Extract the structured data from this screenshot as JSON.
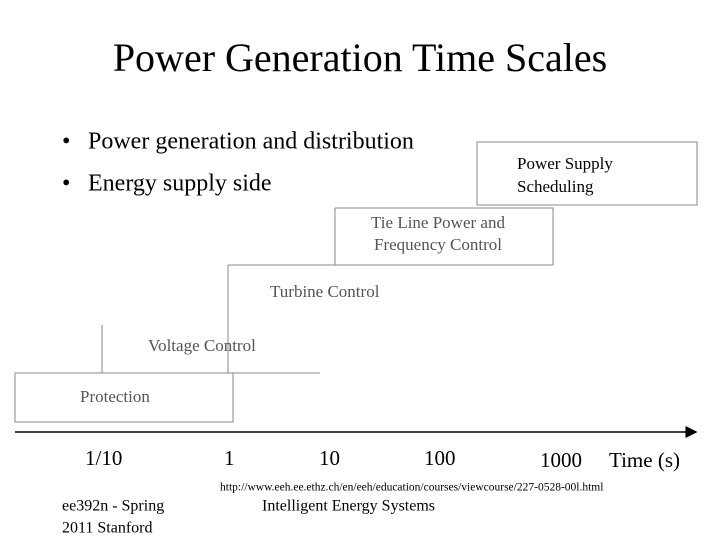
{
  "title": "Power Generation Time Scales",
  "bullets": [
    "Power generation and distribution",
    "Energy supply side"
  ],
  "boxes": {
    "scheduling": [
      "Power Supply",
      "Scheduling"
    ],
    "tie_line": [
      "Tie Line Power and",
      "Frequency Control"
    ],
    "turbine": "Turbine Control",
    "voltage": "Voltage Control",
    "protection": "Protection"
  },
  "axis": {
    "ticks": [
      "1/10",
      "1",
      "10",
      "100",
      "1000"
    ],
    "label": "Time (s)"
  },
  "source_url": "http://www.eeh.ee.ethz.ch/en/eeh/education/courses/viewcourse/227-0528-00l.html",
  "footer": {
    "left": [
      "ee392n - Spring",
      "2011 Stanford"
    ],
    "center": "Intelligent Energy Systems"
  }
}
